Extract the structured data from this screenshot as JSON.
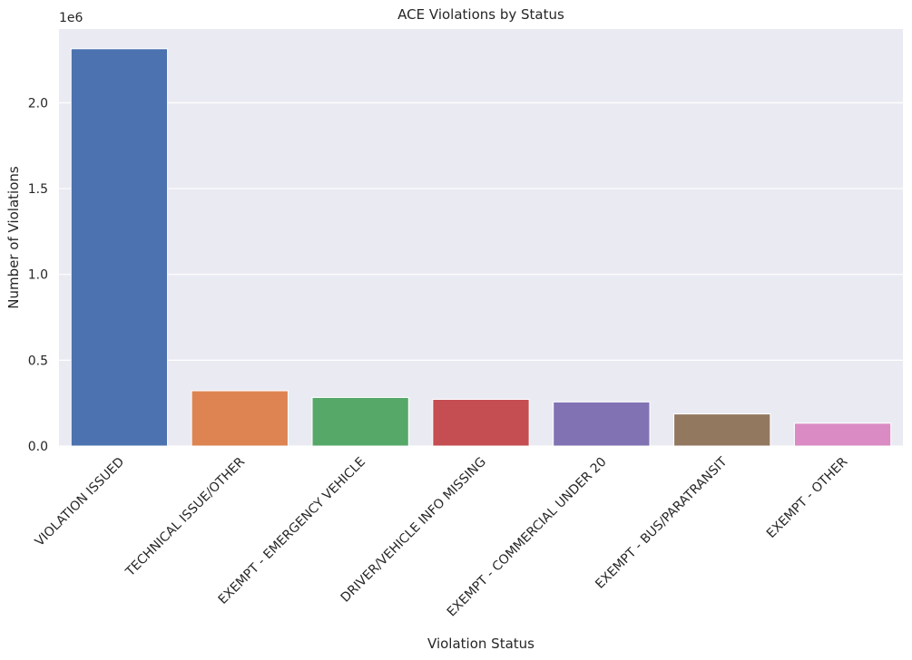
{
  "chart_data": {
    "type": "bar",
    "title": "ACE Violations by Status",
    "xlabel": "Violation Status",
    "ylabel": "Number of Violations",
    "offset_label": "1e6",
    "categories": [
      "VIOLATION ISSUED",
      "TECHNICAL ISSUE/OTHER",
      "EXEMPT - EMERGENCY VEHICLE",
      "DRIVER/VEHICLE INFO MISSING",
      "EXEMPT - COMMERCIAL UNDER 20",
      "EXEMPT - BUS/PARATRANSIT",
      "EXEMPT - OTHER"
    ],
    "values": [
      2315000,
      322000,
      283000,
      272000,
      257000,
      187000,
      133000
    ],
    "colors": [
      "#4c72b0",
      "#dd8452",
      "#55a868",
      "#c44e52",
      "#8172b3",
      "#937860",
      "#da8bc3"
    ],
    "yticks": [
      0,
      500000,
      1000000,
      1500000,
      2000000
    ],
    "ytick_labels": [
      "0.0",
      "0.5",
      "1.0",
      "1.5",
      "2.0"
    ],
    "ylim": [
      0,
      2430000
    ],
    "grid": true,
    "background": "#eaeaf2"
  }
}
